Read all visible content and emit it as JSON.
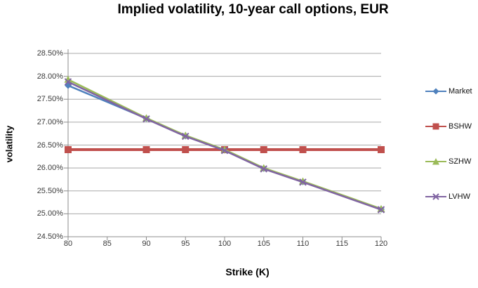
{
  "chart_data": {
    "type": "line",
    "title": "Implied volatility, 10-year call options, EUR",
    "xlabel": "Strike (K)",
    "ylabel": "volatility",
    "x": [
      80,
      90,
      95,
      100,
      105,
      110,
      120
    ],
    "series": [
      {
        "name": "Market",
        "color": "#4F81BD",
        "marker": "diamond",
        "line_width": 2.5,
        "values": [
          27.8,
          27.08,
          26.7,
          26.39,
          25.99,
          25.7,
          25.1
        ]
      },
      {
        "name": "BSHW",
        "color": "#C0504D",
        "marker": "square",
        "line_width": 4,
        "values": [
          26.4,
          26.4,
          26.4,
          26.4,
          26.4,
          26.4,
          26.4
        ]
      },
      {
        "name": "SZHW",
        "color": "#9BBB59",
        "marker": "triangle",
        "line_width": 2.5,
        "values": [
          27.93,
          27.09,
          26.71,
          26.4,
          26.0,
          25.71,
          25.11
        ]
      },
      {
        "name": "LVHW",
        "color": "#8064A2",
        "marker": "x",
        "line_width": 2.5,
        "values": [
          27.88,
          27.07,
          26.69,
          26.38,
          25.98,
          25.69,
          25.09
        ]
      }
    ],
    "xlim": [
      80,
      120
    ],
    "ylim": [
      24.5,
      28.5
    ],
    "x_ticks": {
      "values": [
        80,
        85,
        90,
        95,
        100,
        105,
        110,
        115,
        120
      ],
      "labels": [
        "80",
        "85",
        "90",
        "95",
        "100",
        "105",
        "110",
        "115",
        "120"
      ]
    },
    "y_ticks": {
      "values": [
        28.5,
        28.0,
        27.5,
        27.0,
        26.5,
        26.0,
        25.5,
        25.0,
        24.5
      ],
      "labels": [
        "28.50%",
        "28.00%",
        "27.50%",
        "27.00%",
        "26.50%",
        "26.00%",
        "25.50%",
        "25.00%",
        "24.50%"
      ]
    },
    "grid": "horizontal",
    "legend_position": "right",
    "colors": {
      "gridline": "#A9A9A9",
      "axis": "#8C8C8C",
      "tick_text": "#3a3a3a",
      "background": "#FFFFFF"
    }
  }
}
